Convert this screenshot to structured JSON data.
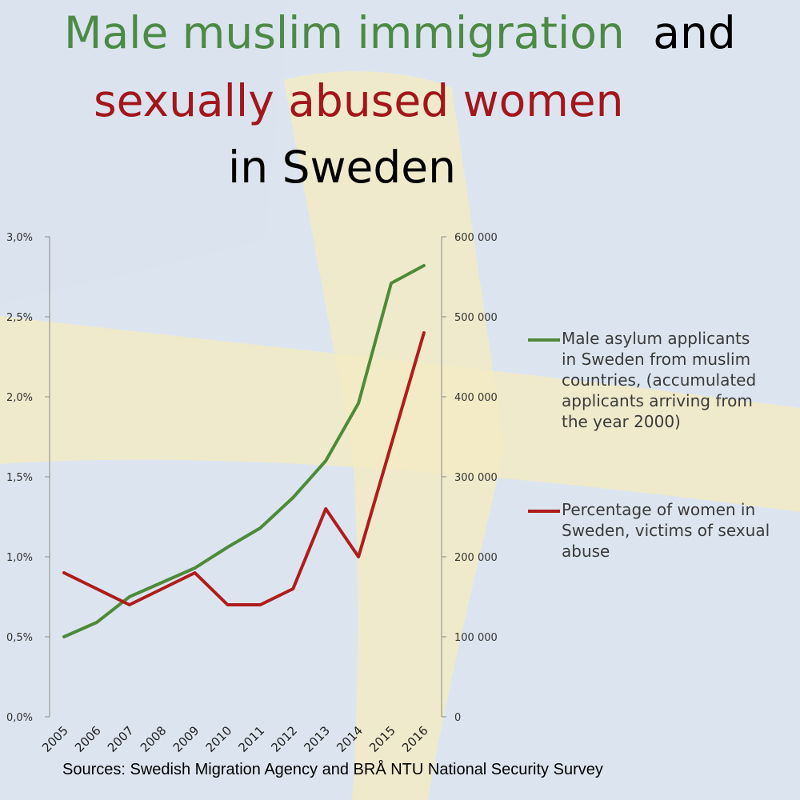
{
  "title": {
    "line1_green": "Male muslim immigration",
    "line1_black": "and",
    "line2": "sexually abused women",
    "line3": "in Sweden"
  },
  "colors": {
    "title_green": "#4d8a45",
    "title_red": "#a3161c",
    "series_green": "#4e8a3a",
    "series_red": "#b01c1c",
    "flag_blue": "#dbe4ee",
    "flag_yellow": "#f3ecc2"
  },
  "sources": "Sources: Swedish Migration Agency and BRÅ NTU National Security Survey",
  "chart_data": {
    "type": "line",
    "x": [
      "2005",
      "2006",
      "2007",
      "2008",
      "2009",
      "2010",
      "2011",
      "2012",
      "2013",
      "2014",
      "2015",
      "2016"
    ],
    "y_left_ticks": [
      "0,0%",
      "0,5%",
      "1,0%",
      "1,5%",
      "2,0%",
      "2,5%",
      "3,0%"
    ],
    "y_left_range": [
      0,
      3.0
    ],
    "y_right_ticks": [
      "0",
      "100 000",
      "200 000",
      "300 000",
      "400 000",
      "500 000",
      "600 000"
    ],
    "y_right_range": [
      0,
      600000
    ],
    "series": [
      {
        "name": "Male asylum applicants in Sweden from muslim countries, (accumulated applicants arriving from the year 2000)",
        "axis": "right",
        "color": "#4e8a3a",
        "values": [
          100000,
          118000,
          150000,
          168000,
          186000,
          212000,
          236000,
          274000,
          320000,
          392000,
          542000,
          564000
        ]
      },
      {
        "name": "Percentage of women in Sweden, victims of sexual abuse",
        "axis": "left",
        "color": "#b01c1c",
        "values": [
          0.9,
          0.8,
          0.7,
          0.8,
          0.9,
          0.7,
          0.7,
          0.8,
          1.3,
          1.0,
          1.7,
          2.4
        ]
      }
    ],
    "legend": [
      "Male asylum applicants\nin Sweden from muslim\ncountries, (accumulated\napplicants arriving from\nthe year 2000)",
      "Percentage of women in\nSweden, victims of sexual\nabuse"
    ],
    "legend_position": "right",
    "grid": false
  }
}
